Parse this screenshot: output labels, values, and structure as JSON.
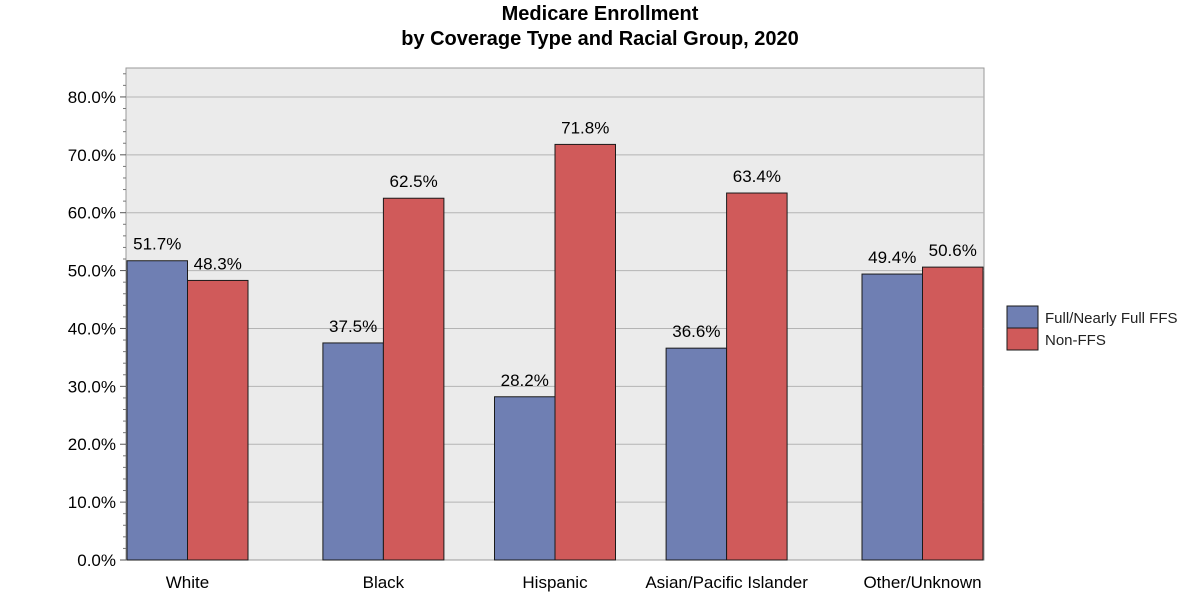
{
  "chart_data": {
    "type": "bar",
    "title": "Medicare Enrollment",
    "subtitle": "by Coverage Type and Racial Group, 2020",
    "xlabel": "",
    "ylabel": "",
    "categories": [
      "White",
      "Black",
      "Hispanic",
      "Asian/Pacific Islander",
      "Other/Unknown"
    ],
    "series": [
      {
        "name": "Full/Nearly Full FFS",
        "color": "#6f7fb3",
        "values": [
          51.7,
          37.5,
          28.2,
          36.6,
          49.4
        ],
        "labels": [
          "51.7%",
          "37.5%",
          "28.2%",
          "36.6%",
          "49.4%"
        ]
      },
      {
        "name": "Non-FFS",
        "color": "#d05a5a",
        "values": [
          48.3,
          62.5,
          71.8,
          63.4,
          50.6
        ],
        "labels": [
          "48.3%",
          "62.5%",
          "71.8%",
          "63.4%",
          "50.6%"
        ]
      }
    ],
    "ylim": [
      0,
      85
    ],
    "yticks": [
      0,
      10,
      20,
      30,
      40,
      50,
      60,
      70,
      80
    ],
    "ytick_labels": [
      "0.0%",
      "10.0%",
      "20.0%",
      "30.0%",
      "40.0%",
      "50.0%",
      "60.0%",
      "70.0%",
      "80.0%"
    ],
    "grid": true,
    "plot_background": "#ebebeb",
    "legend_position": "right"
  }
}
